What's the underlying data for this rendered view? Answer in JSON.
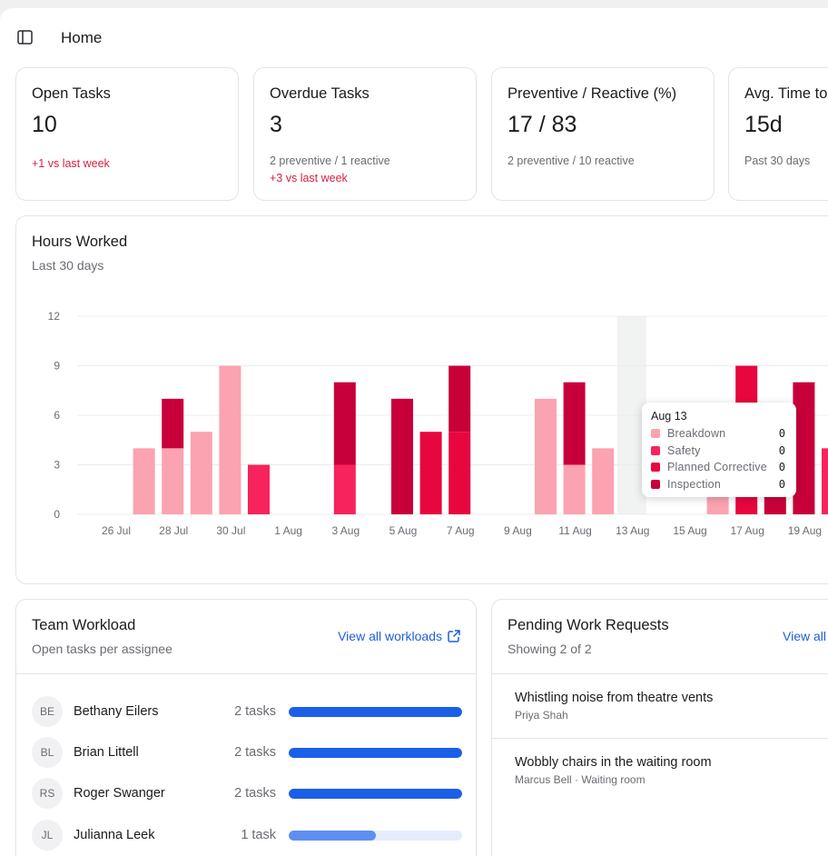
{
  "header": {
    "title": "Home",
    "sidebar_icon": "sidebar-panel-icon"
  },
  "stats": [
    {
      "title": "Open Tasks",
      "value": "10",
      "sub": "",
      "delta": "+1 vs last week"
    },
    {
      "title": "Overdue Tasks",
      "value": "3",
      "sub": "2 preventive / 1 reactive",
      "delta": "+3 vs last week"
    },
    {
      "title": "Preventive / Reactive (%)",
      "value": "17 / 83",
      "sub": "2 preventive / 10 reactive",
      "delta": ""
    },
    {
      "title": "Avg. Time to",
      "value": "15d",
      "sub": "Past 30 days",
      "delta": ""
    }
  ],
  "hours": {
    "title": "Hours Worked",
    "subtitle": "Last 30 days",
    "tooltip": {
      "date": "Aug 13",
      "rows": [
        {
          "label": "Breakdown",
          "value": "0"
        },
        {
          "label": "Safety",
          "value": "0"
        },
        {
          "label": "Planned Corrective",
          "value": "0"
        },
        {
          "label": "Inspection",
          "value": "0"
        }
      ]
    }
  },
  "colors": {
    "breakdown": "#fba3b0",
    "safety": "#f7235c",
    "planned_corrective": "#e8063f",
    "inspection": "#c8003a",
    "accent_blue": "#1a5fe8",
    "accent_blue_light": "#5e8ff0",
    "delta_red": "#d92040"
  },
  "chart_data": {
    "type": "bar",
    "stacked": true,
    "x": [
      "26 Jul",
      "27 Jul",
      "28 Jul",
      "29 Jul",
      "30 Jul",
      "31 Jul",
      "1 Aug",
      "2 Aug",
      "3 Aug",
      "4 Aug",
      "5 Aug",
      "6 Aug",
      "7 Aug",
      "8 Aug",
      "9 Aug",
      "10 Aug",
      "11 Aug",
      "12 Aug",
      "13 Aug",
      "14 Aug",
      "15 Aug",
      "16 Aug",
      "17 Aug",
      "18 Aug",
      "19 Aug",
      "20 Aug"
    ],
    "x_tick_labels": [
      "26 Jul",
      "28 Jul",
      "30 Jul",
      "1 Aug",
      "3 Aug",
      "5 Aug",
      "7 Aug",
      "9 Aug",
      "11 Aug",
      "13 Aug",
      "15 Aug",
      "17 Aug",
      "19 Aug"
    ],
    "series": [
      {
        "name": "Breakdown",
        "values": [
          0,
          4,
          4,
          5,
          9,
          0,
          0,
          0,
          0,
          0,
          0,
          0,
          0,
          0,
          0,
          7,
          3,
          4,
          0,
          0,
          0,
          4,
          0,
          0,
          0,
          0
        ]
      },
      {
        "name": "Safety",
        "values": [
          0,
          0,
          0,
          0,
          0,
          3,
          0,
          0,
          3,
          0,
          0,
          0,
          0,
          0,
          0,
          0,
          0,
          0,
          0,
          0,
          0,
          0,
          0,
          0,
          0,
          4
        ]
      },
      {
        "name": "Planned Corrective",
        "values": [
          0,
          0,
          0,
          0,
          0,
          0,
          0,
          0,
          0,
          0,
          0,
          5,
          5,
          0,
          0,
          0,
          0,
          0,
          0,
          0,
          0,
          0,
          9,
          0,
          0,
          0
        ]
      },
      {
        "name": "Inspection",
        "values": [
          0,
          0,
          3,
          0,
          0,
          0,
          0,
          0,
          5,
          0,
          7,
          0,
          4,
          0,
          0,
          0,
          5,
          0,
          0,
          0,
          0,
          0,
          0,
          4,
          8,
          0
        ]
      }
    ],
    "y_ticks": [
      0,
      3,
      6,
      9,
      12
    ],
    "ylim": [
      0,
      12
    ],
    "highlighted": "13 Aug",
    "grid": true
  },
  "workload": {
    "title": "Team Workload",
    "subtitle": "Open tasks per assignee",
    "link_label": "View all workloads",
    "assignees": [
      {
        "initials": "BE",
        "name": "Bethany Eilers",
        "count": "2 tasks",
        "fraction": 1.0
      },
      {
        "initials": "BL",
        "name": "Brian Littell",
        "count": "2 tasks",
        "fraction": 1.0
      },
      {
        "initials": "RS",
        "name": "Roger Swanger",
        "count": "2 tasks",
        "fraction": 1.0
      },
      {
        "initials": "JL",
        "name": "Julianna Leek",
        "count": "1 task",
        "fraction": 0.5
      }
    ]
  },
  "requests": {
    "title": "Pending Work Requests",
    "subtitle": "Showing 2 of 2",
    "link_label": "View all",
    "items": [
      {
        "title": "Whistling noise from theatre vents",
        "meta": "Priya Shah"
      },
      {
        "title": "Wobbly chairs in the waiting room",
        "meta": "Marcus Bell · Waiting room"
      }
    ]
  }
}
